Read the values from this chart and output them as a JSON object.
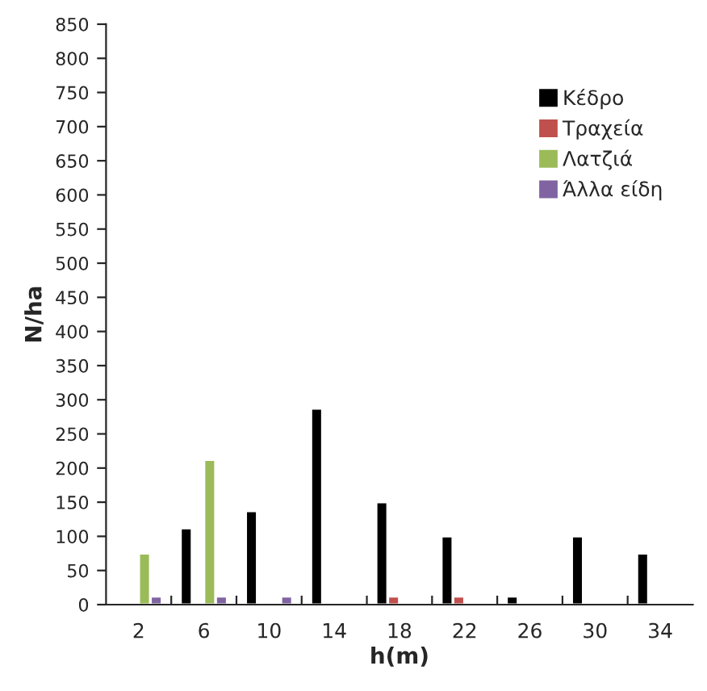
{
  "chart_data": {
    "type": "bar",
    "xlabel": "h(m)",
    "ylabel": "N/ha",
    "categories": [
      "2",
      "6",
      "10",
      "14",
      "18",
      "22",
      "26",
      "30",
      "34"
    ],
    "series": [
      {
        "name": "Κέδρο",
        "color": "#000000",
        "values": [
          null,
          112,
          137,
          287,
          150,
          100,
          12,
          100,
          75
        ]
      },
      {
        "name": "Τραχεία",
        "color": "#c0504d",
        "values": [
          null,
          null,
          null,
          null,
          12,
          12,
          null,
          null,
          null
        ]
      },
      {
        "name": "Λατζιά",
        "color": "#9bbb59",
        "values": [
          75,
          212,
          null,
          null,
          null,
          null,
          null,
          null,
          null
        ]
      },
      {
        "name": "Άλλα είδη",
        "color": "#8064a2",
        "values": [
          12,
          12,
          12,
          null,
          null,
          null,
          null,
          null,
          null
        ]
      }
    ],
    "ylim": [
      0,
      850
    ],
    "yticks": [
      0,
      50,
      100,
      150,
      200,
      250,
      300,
      350,
      400,
      450,
      500,
      550,
      600,
      650,
      700,
      750,
      800,
      850
    ],
    "grid": false,
    "legend": "top right"
  }
}
